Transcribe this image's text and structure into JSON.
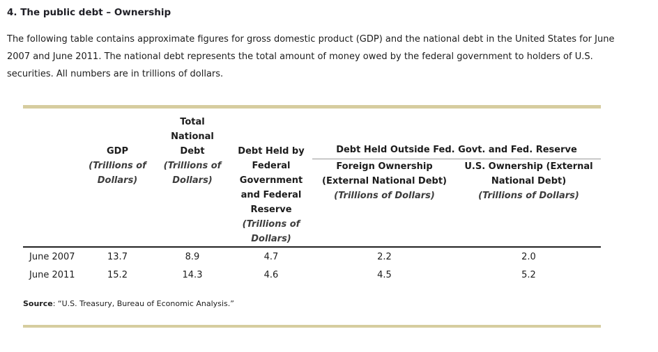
{
  "page": {
    "title": "4. The public debt – Ownership",
    "intro": "The following table contains approximate figures for gross domestic product (GDP) and the national debt in the United States for June 2007 and June 2011. The national debt represents the total amount of money owed by the federal government to holders of U.S. securities. All numbers are in trillions of dollars.",
    "source_label": "Source",
    "source_rest": ": “U.S. Treasury, Bureau of Economic Analysis.”"
  },
  "table": {
    "columns": {
      "gdp": {
        "title": "GDP",
        "unit": "(Trillions of Dollars)"
      },
      "total_national_debt": {
        "title": "Total National Debt",
        "unit": "(Trillions of Dollars)"
      },
      "debt_held_fed": {
        "title": "Debt Held by Federal Government and Federal Reserve",
        "unit": "(Trillions of Dollars)"
      },
      "outside_group": {
        "title": "Debt Held Outside Fed. Govt. and Fed. Reserve"
      },
      "foreign_ownership": {
        "title": "Foreign Ownership (External National Debt)",
        "unit": "(Trillions of Dollars)"
      },
      "us_ownership": {
        "title": "U.S. Ownership (External National Debt)",
        "unit": "(Trillions of Dollars)"
      }
    },
    "rows": [
      {
        "label": "June 2007",
        "gdp": "13.7",
        "total_debt": "8.9",
        "fed_held": "4.7",
        "foreign": "2.2",
        "us": "2.0"
      },
      {
        "label": "June 2011",
        "gdp": "15.2",
        "total_debt": "14.3",
        "fed_held": "4.6",
        "foreign": "4.5",
        "us": "5.2"
      }
    ]
  }
}
